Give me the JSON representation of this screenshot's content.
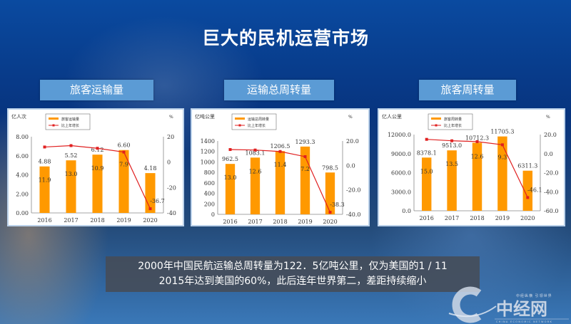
{
  "title": "巨大的民机运营市场",
  "panels": [
    "旅客运输量",
    "运输总周转量",
    "旅客周转量"
  ],
  "caption": {
    "line1": "2000年中国民航运输总周转量为122．5亿吨公里，仅为美国的1 / 11",
    "line2": "2015年达到美国的60%，此后连年世界第二，差距持续缩小"
  },
  "logo": {
    "text": "中经网",
    "slogan": "中经纵横 引领世界",
    "english": "CHINA ECONOMIC NETWORK"
  },
  "colors": {
    "bar": "#ff9900",
    "line": "#e02020",
    "panel": "#5b9bd5"
  },
  "chart_data": [
    {
      "type": "bar+line",
      "categories": [
        "2016",
        "2017",
        "2018",
        "2019",
        "2020"
      ],
      "ylabel": "亿人次",
      "y2label": "%",
      "ylim": [
        0,
        8
      ],
      "y2lim": [
        -40,
        20
      ],
      "yticks": [
        "0.00",
        "2.00",
        "4.00",
        "6.00",
        "8.00"
      ],
      "y2ticks": [
        "-40",
        "-20",
        "0",
        "20"
      ],
      "series": [
        {
          "name": "旅客运输量",
          "kind": "bar",
          "values": [
            4.88,
            5.52,
            6.12,
            6.6,
            4.18
          ],
          "labels": [
            "4.88",
            "5.52",
            "6.12",
            "6.60",
            "4.18"
          ]
        },
        {
          "name": "比上年增长",
          "kind": "line",
          "axis": "right",
          "values": [
            11.9,
            13.0,
            10.9,
            7.9,
            -36.7
          ],
          "labels": [
            "11.9",
            "13.0",
            "10.9",
            "7.9",
            "-36.7"
          ]
        }
      ],
      "legend": "top-left"
    },
    {
      "type": "bar+line",
      "categories": [
        "2016",
        "2017",
        "2018",
        "2019",
        "2020"
      ],
      "ylabel": "亿吨公里",
      "y2label": "%",
      "ylim": [
        0,
        1400
      ],
      "y2lim": [
        -40,
        20
      ],
      "yticks": [
        "0",
        "200",
        "400",
        "600",
        "800",
        "1000",
        "1200",
        "1400"
      ],
      "y2ticks": [
        "-40.0",
        "-20.0",
        "0.0",
        "20.0"
      ],
      "series": [
        {
          "name": "运输总周转量",
          "kind": "bar",
          "values": [
            962.5,
            1083.1,
            1206.5,
            1293.3,
            798.5
          ],
          "labels": [
            "962.5",
            "1083.1",
            "1206.5",
            "1293.3",
            "798.5"
          ]
        },
        {
          "name": "比上年增长",
          "kind": "line",
          "axis": "right",
          "values": [
            13.0,
            12.6,
            11.4,
            7.2,
            -38.3
          ],
          "labels": [
            "13.0",
            "12.6",
            "11.4",
            "7.2",
            "-38.3"
          ]
        }
      ],
      "legend": "top-left"
    },
    {
      "type": "bar+line",
      "categories": [
        "2016",
        "2017",
        "2018",
        "2019",
        "2020"
      ],
      "ylabel": "亿人公里",
      "y2label": "%",
      "ylim": [
        0,
        12000
      ],
      "y2lim": [
        -60,
        20
      ],
      "yticks": [
        "0.0",
        "3000.0",
        "6000.0",
        "9000.0",
        "12000.0"
      ],
      "y2ticks": [
        "-60.0",
        "-40.0",
        "-20.0",
        "0.0",
        "20.0"
      ],
      "series": [
        {
          "name": "旅客周转量",
          "kind": "bar",
          "values": [
            8378.1,
            9513.0,
            10712.3,
            11705.3,
            6311.3
          ],
          "labels": [
            "8378.1",
            "9513.0",
            "10712.3",
            "11705.3",
            "6311.3"
          ]
        },
        {
          "name": "比上年增长",
          "kind": "line",
          "axis": "right",
          "values": [
            15.0,
            13.5,
            12.6,
            9.3,
            -46.1
          ],
          "labels": [
            "15.0",
            "13.5",
            "12.6",
            "9.3",
            "-46.1"
          ]
        }
      ],
      "legend": "top-left"
    }
  ]
}
